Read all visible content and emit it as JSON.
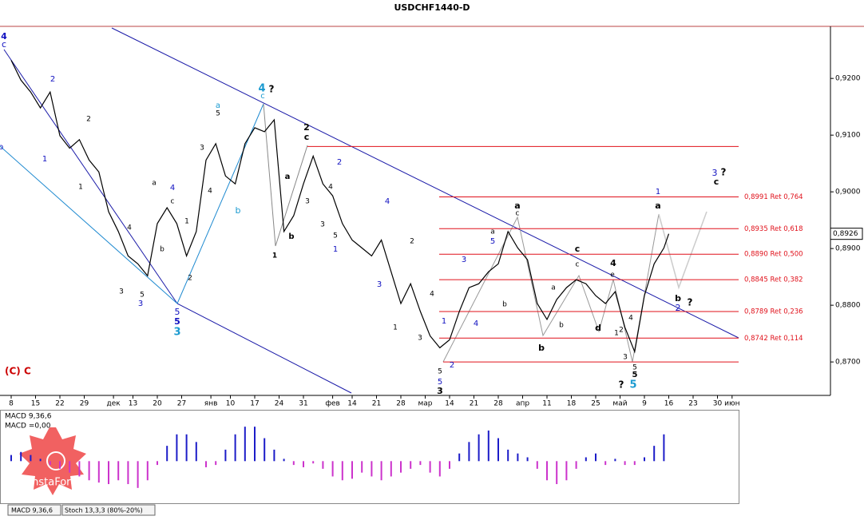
{
  "chart_data": [
    {
      "type": "line",
      "title": "USDCHF1440-D",
      "color": "#000000",
      "x": [
        0,
        2,
        4,
        6,
        8,
        10,
        12,
        14,
        16,
        18,
        20,
        22,
        24,
        26,
        28,
        30,
        32,
        34,
        36,
        38,
        40,
        42,
        44,
        46,
        48,
        50,
        52,
        54,
        56,
        58,
        60,
        62,
        64,
        66,
        68,
        70,
        72,
        74,
        76,
        78,
        80,
        82,
        84,
        86,
        88,
        90,
        92,
        94,
        96,
        98,
        100,
        102,
        104,
        106,
        108,
        110,
        112,
        114,
        116,
        118,
        120,
        122,
        124,
        126,
        128,
        130,
        132,
        134,
        135
      ],
      "values": [
        0.9232,
        0.9197,
        0.9176,
        0.9148,
        0.9176,
        0.9099,
        0.9077,
        0.9092,
        0.9056,
        0.9035,
        0.8965,
        0.893,
        0.8887,
        0.8873,
        0.8852,
        0.8944,
        0.8972,
        0.8944,
        0.8887,
        0.893,
        0.9056,
        0.9085,
        0.9028,
        0.9014,
        0.9085,
        0.9113,
        0.9106,
        0.9127,
        0.893,
        0.8958,
        0.9014,
        0.9063,
        0.9014,
        0.8993,
        0.8944,
        0.8915,
        0.8901,
        0.8887,
        0.8915,
        0.8859,
        0.8803,
        0.8838,
        0.8789,
        0.8746,
        0.8725,
        0.8739,
        0.8789,
        0.8831,
        0.8838,
        0.8859,
        0.8873,
        0.893,
        0.8901,
        0.888,
        0.8803,
        0.8775,
        0.881,
        0.8831,
        0.8845,
        0.8838,
        0.8817,
        0.8803,
        0.8824,
        0.8761,
        0.8718,
        0.8817,
        0.8873,
        0.8901,
        0.8926
      ],
      "xlim": [
        -1,
        168
      ],
      "xticks": [
        {
          "value": 0,
          "label": "8"
        },
        {
          "value": 5,
          "label": "15"
        },
        {
          "value": 10,
          "label": "22"
        },
        {
          "value": 15,
          "label": "29"
        },
        {
          "value": 21,
          "label": "дек"
        },
        {
          "value": 25,
          "label": "13"
        },
        {
          "value": 30,
          "label": "20"
        },
        {
          "value": 35,
          "label": "27"
        },
        {
          "value": 41,
          "label": "янв"
        },
        {
          "value": 45,
          "label": "10"
        },
        {
          "value": 50,
          "label": "17"
        },
        {
          "value": 55,
          "label": "24"
        },
        {
          "value": 60,
          "label": "31"
        },
        {
          "value": 66,
          "label": "фев"
        },
        {
          "value": 70,
          "label": "14"
        },
        {
          "value": 75,
          "label": "21"
        },
        {
          "value": 80,
          "label": "28"
        },
        {
          "value": 85,
          "label": "мар"
        },
        {
          "value": 90,
          "label": "14"
        },
        {
          "value": 95,
          "label": "21"
        },
        {
          "value": 100,
          "label": "28"
        },
        {
          "value": 105,
          "label": "апр"
        },
        {
          "value": 110,
          "label": "11"
        },
        {
          "value": 115,
          "label": "18"
        },
        {
          "value": 120,
          "label": "25"
        },
        {
          "value": 125,
          "label": "май"
        },
        {
          "value": 130,
          "label": "9"
        },
        {
          "value": 135,
          "label": "16"
        },
        {
          "value": 140,
          "label": "23"
        },
        {
          "value": 145,
          "label": "30"
        },
        {
          "value": 148,
          "label": "июн"
        }
      ],
      "ylim": [
        0.8641,
        0.9289
      ],
      "yticks": [
        {
          "value": 0.92,
          "label": "0,9200"
        },
        {
          "value": 0.91,
          "label": "0,9100"
        },
        {
          "value": 0.9,
          "label": "0,9000"
        },
        {
          "value": 0.89,
          "label": "0,8900"
        },
        {
          "value": 0.88,
          "label": "0,8800"
        },
        {
          "value": 0.87,
          "label": "0,8700"
        }
      ],
      "last_price": {
        "value": 0.8926,
        "label": "0,8926"
      },
      "level_color": "#e0101a",
      "levels": [
        {
          "value": 0.8991,
          "label": "0,8991 Ret 0,764"
        },
        {
          "value": 0.8935,
          "label": "0,8935 Ret 0,618"
        },
        {
          "value": 0.889,
          "label": "0,8890 Ret 0,500"
        },
        {
          "value": 0.8845,
          "label": "0,8845 Ret 0,382"
        },
        {
          "value": 0.8789,
          "label": "0,8789 Ret 0,236"
        },
        {
          "value": 0.8742,
          "label": "0,8742 Ret 0,114"
        }
      ],
      "extra_levels": [
        0.908,
        0.87
      ],
      "copyright": "(C) C",
      "watermark": "InstaForex",
      "annotations": [
        "4",
        "c",
        "b",
        "2",
        "1",
        "2",
        "1",
        "4",
        "3",
        "5",
        "3",
        "a",
        "4",
        "c",
        "b",
        "1",
        "2",
        "5",
        "5",
        "3",
        "a",
        "5",
        "3",
        "4",
        "b",
        "4",
        "?",
        "c",
        "1",
        "b",
        "a",
        "3",
        "2",
        "c",
        "4",
        "3",
        "5",
        "1",
        "2",
        "4",
        "3",
        "2",
        "1",
        "3",
        "4",
        "1",
        "2",
        "5",
        "5",
        "3",
        "3",
        "4",
        "a",
        "5",
        "b",
        "a",
        "c",
        "b",
        "a",
        "b",
        "c",
        "c",
        "4",
        "e",
        "d",
        "2",
        "1",
        "4",
        "3",
        "5",
        "5",
        "?",
        "5",
        "1",
        "a",
        "b",
        "2",
        "?",
        "3",
        "?",
        "c"
      ]
    },
    {
      "type": "histogram",
      "title": "MACD 9,36,6",
      "subtitle": "MACD =0,00",
      "color": "#1c1cc8",
      "negative_color": "#cc33cc",
      "x": [
        0,
        2,
        4,
        6,
        8,
        10,
        12,
        14,
        16,
        18,
        20,
        22,
        24,
        26,
        28,
        30,
        32,
        34,
        36,
        38,
        40,
        42,
        44,
        46,
        48,
        50,
        52,
        54,
        56,
        58,
        60,
        62,
        64,
        66,
        68,
        70,
        72,
        74,
        76,
        78,
        80,
        82,
        84,
        86,
        88,
        90,
        92,
        94,
        96,
        98,
        100,
        102,
        104,
        106,
        108,
        110,
        112,
        114,
        116,
        118,
        120,
        122,
        124,
        126,
        128,
        130,
        132,
        134
      ],
      "values": [
        0.0008,
        0.0012,
        0.0008,
        0.0003,
        -0.0005,
        -0.001,
        -0.0015,
        -0.002,
        -0.0025,
        -0.0028,
        -0.003,
        -0.0025,
        -0.003,
        -0.0035,
        -0.0025,
        -0.0005,
        0.002,
        0.0035,
        0.0035,
        0.0025,
        -0.0008,
        -0.0005,
        0.0015,
        0.0035,
        0.0045,
        0.0045,
        0.003,
        0.0015,
        0.0003,
        -0.0005,
        -0.0008,
        -0.0003,
        -0.001,
        -0.002,
        -0.0025,
        -0.0023,
        -0.0015,
        -0.002,
        -0.0025,
        -0.002,
        -0.0015,
        -0.001,
        -0.0005,
        -0.0015,
        -0.002,
        -0.001,
        0.001,
        0.0025,
        0.0035,
        0.004,
        0.003,
        0.0015,
        0.001,
        0.0005,
        -0.001,
        -0.0025,
        -0.003,
        -0.0025,
        -0.001,
        0.0005,
        0.001,
        -0.0005,
        0.0003,
        -0.0005,
        -0.0005,
        0.0005,
        0.002,
        0.0035
      ],
      "xlim": [
        -1,
        168
      ],
      "ylim": [
        -0.0055,
        0.0065
      ],
      "tabs": [
        "MACD 9,36,6",
        "Stoch 13,3,3 (80%-20%)"
      ]
    }
  ]
}
